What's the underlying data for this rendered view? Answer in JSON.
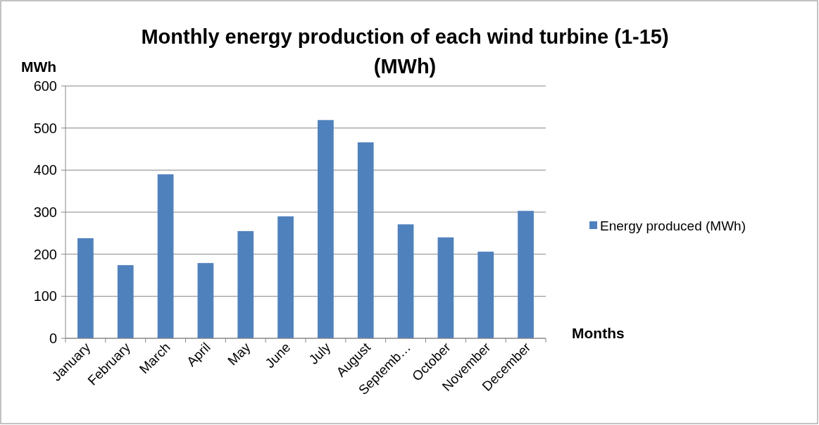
{
  "chart_data": {
    "type": "bar",
    "title": "Monthly energy production of each wind turbine (1-15) (MWh)",
    "ylabel": "MWh",
    "xlabel": "Months",
    "categories": [
      "January",
      "February",
      "March",
      "April",
      "May",
      "June",
      "July",
      "August",
      "Septemb…",
      "October",
      "November",
      "December"
    ],
    "series": [
      {
        "name": "Energy produced (MWh)",
        "color": "#4f81bd",
        "values": [
          238,
          174,
          390,
          179,
          255,
          290,
          519,
          466,
          271,
          240,
          206,
          303
        ]
      }
    ],
    "ylim": [
      0,
      600
    ],
    "yticks": [
      0,
      100,
      200,
      300,
      400,
      500,
      600
    ],
    "grid": "y",
    "legend": "right"
  }
}
